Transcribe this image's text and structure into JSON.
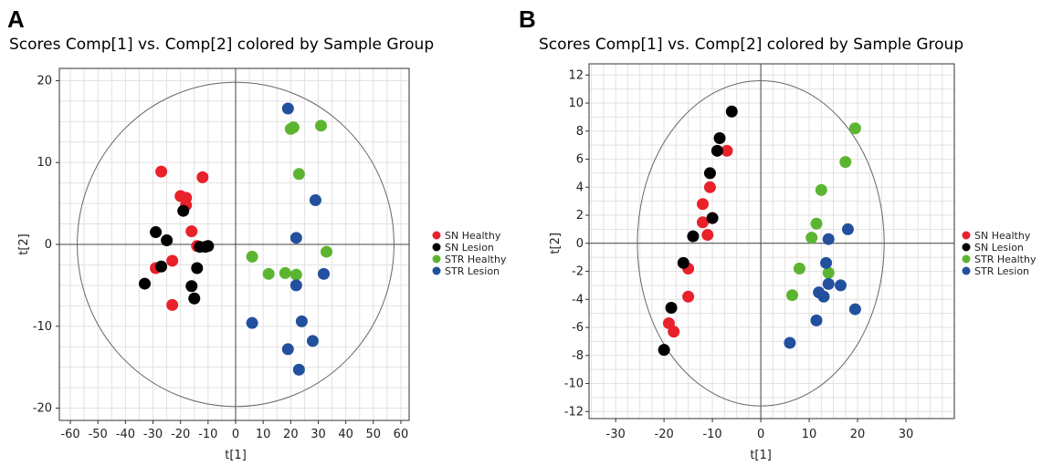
{
  "chart_data": [
    {
      "panel": "A",
      "type": "scatter",
      "title": "Scores Comp[1] vs. Comp[2] colored by Sample Group",
      "xlabel": "t[1]",
      "ylabel": "t[2]",
      "xlim": [
        -64,
        63
      ],
      "ylim": [
        -21.5,
        21.5
      ],
      "xticks": [
        -60,
        -50,
        -40,
        -30,
        -20,
        -10,
        0,
        10,
        20,
        30,
        40,
        50,
        60
      ],
      "yticks": [
        -20,
        -10,
        0,
        10,
        20
      ],
      "xminor": 5,
      "yminor": 2.5,
      "ellipse": {
        "rx": 57.5,
        "ry": 19.8
      },
      "grid": true,
      "legend_position": "right",
      "series": [
        {
          "name": "SN Healthy",
          "color": "#e8212b",
          "points": [
            [
              -27,
              8.9
            ],
            [
              -12,
              8.2
            ],
            [
              -20,
              5.9
            ],
            [
              -18,
              5.7
            ],
            [
              -18,
              4.8
            ],
            [
              -16,
              1.6
            ],
            [
              -14,
              -0.2
            ],
            [
              -29,
              -2.9
            ],
            [
              -23,
              -2.0
            ],
            [
              -23,
              -7.4
            ]
          ]
        },
        {
          "name": "SN Lesion",
          "color": "#000000",
          "points": [
            [
              -29,
              1.5
            ],
            [
              -25,
              0.5
            ],
            [
              -19,
              4.1
            ],
            [
              -13,
              -0.3
            ],
            [
              -11,
              -0.3
            ],
            [
              -10,
              -0.2
            ],
            [
              -27,
              -2.7
            ],
            [
              -14,
              -2.9
            ],
            [
              -16,
              -5.1
            ],
            [
              -15,
              -6.6
            ],
            [
              -33,
              -4.8
            ]
          ]
        },
        {
          "name": "STR Healthy",
          "color": "#5cb531",
          "points": [
            [
              20,
              14.1
            ],
            [
              21,
              14.3
            ],
            [
              31,
              14.5
            ],
            [
              23,
              8.6
            ],
            [
              33,
              -0.9
            ],
            [
              6,
              -1.5
            ],
            [
              12,
              -3.6
            ],
            [
              18,
              -3.5
            ],
            [
              22,
              -3.7
            ]
          ]
        },
        {
          "name": "STR Lesion",
          "color": "#23509e",
          "points": [
            [
              19,
              16.6
            ],
            [
              29,
              5.4
            ],
            [
              22,
              0.8
            ],
            [
              22,
              -5.0
            ],
            [
              32,
              -3.6
            ],
            [
              6,
              -9.6
            ],
            [
              24,
              -9.4
            ],
            [
              28,
              -11.8
            ],
            [
              19,
              -12.8
            ],
            [
              23,
              -15.3
            ]
          ]
        }
      ]
    },
    {
      "panel": "B",
      "type": "scatter",
      "title": "Scores Comp[1] vs. Comp[2] colored by Sample Group",
      "xlabel": "t[1]",
      "ylabel": "t[2]",
      "xlim": [
        -35.5,
        40
      ],
      "ylim": [
        -12.5,
        12.8
      ],
      "xticks": [
        -30,
        -20,
        -10,
        0,
        10,
        20,
        30
      ],
      "yticks": [
        -12,
        -10,
        -8,
        -6,
        -4,
        -2,
        0,
        2,
        4,
        6,
        8,
        10,
        12
      ],
      "xminor": 2.5,
      "yminor": 1,
      "ellipse": {
        "rx": 25.5,
        "ry": 11.6
      },
      "grid": true,
      "legend_position": "right",
      "series": [
        {
          "name": "SN Healthy",
          "color": "#e8212b",
          "points": [
            [
              -7,
              6.6
            ],
            [
              -10.5,
              4.0
            ],
            [
              -12,
              2.8
            ],
            [
              -12,
              1.5
            ],
            [
              -11,
              0.6
            ],
            [
              -15,
              -1.8
            ],
            [
              -15,
              -3.8
            ],
            [
              -19,
              -5.7
            ],
            [
              -18,
              -6.3
            ]
          ]
        },
        {
          "name": "SN Lesion",
          "color": "#000000",
          "points": [
            [
              -6,
              9.4
            ],
            [
              -8.5,
              7.5
            ],
            [
              -9,
              6.6
            ],
            [
              -10.5,
              5.0
            ],
            [
              -10,
              1.8
            ],
            [
              -14,
              0.5
            ],
            [
              -16,
              -1.4
            ],
            [
              -18.5,
              -4.6
            ],
            [
              -20,
              -7.6
            ]
          ]
        },
        {
          "name": "STR Healthy",
          "color": "#5cb531",
          "points": [
            [
              19.5,
              8.2
            ],
            [
              17.5,
              5.8
            ],
            [
              12.5,
              3.8
            ],
            [
              11.5,
              1.4
            ],
            [
              10.5,
              0.4
            ],
            [
              8,
              -1.8
            ],
            [
              14,
              -2.1
            ],
            [
              6.5,
              -3.7
            ]
          ]
        },
        {
          "name": "STR Lesion",
          "color": "#23509e",
          "points": [
            [
              18,
              1.0
            ],
            [
              14,
              0.3
            ],
            [
              13.5,
              -1.4
            ],
            [
              14,
              -2.9
            ],
            [
              16.5,
              -3.0
            ],
            [
              12,
              -3.5
            ],
            [
              13,
              -3.8
            ],
            [
              19.5,
              -4.7
            ],
            [
              11.5,
              -5.5
            ],
            [
              6,
              -7.1
            ]
          ]
        }
      ]
    }
  ]
}
